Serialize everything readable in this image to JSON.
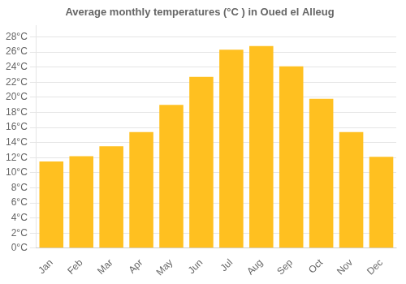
{
  "chart_data": {
    "type": "bar",
    "title": "Average monthly temperatures (°C ) in Oued el Alleug",
    "categories": [
      "Jan",
      "Feb",
      "Mar",
      "Apr",
      "May",
      "Jun",
      "Jul",
      "Aug",
      "Sep",
      "Oct",
      "Nov",
      "Dec"
    ],
    "values": [
      11.5,
      12.2,
      13.5,
      15.4,
      19.0,
      22.7,
      26.3,
      26.8,
      24.1,
      19.8,
      15.4,
      12.1
    ],
    "color": "#FFC020",
    "ylim": [
      0,
      29.5
    ],
    "yticks": [
      {
        "value": 0,
        "label": "0°C"
      },
      {
        "value": 2,
        "label": "2°C"
      },
      {
        "value": 4,
        "label": "4°C"
      },
      {
        "value": 6,
        "label": "6°C"
      },
      {
        "value": 8,
        "label": "8°C"
      },
      {
        "value": 10,
        "label": "10°C"
      },
      {
        "value": 12,
        "label": "12°C"
      },
      {
        "value": 14,
        "label": "14°C"
      },
      {
        "value": 16,
        "label": "16°C"
      },
      {
        "value": 18,
        "label": "18°C"
      },
      {
        "value": 20,
        "label": "20°C"
      },
      {
        "value": 22,
        "label": "22°C"
      },
      {
        "value": 24,
        "label": "24°C"
      },
      {
        "value": 26,
        "label": "26°C"
      },
      {
        "value": 28,
        "label": "28°C"
      }
    ],
    "grid": true
  }
}
